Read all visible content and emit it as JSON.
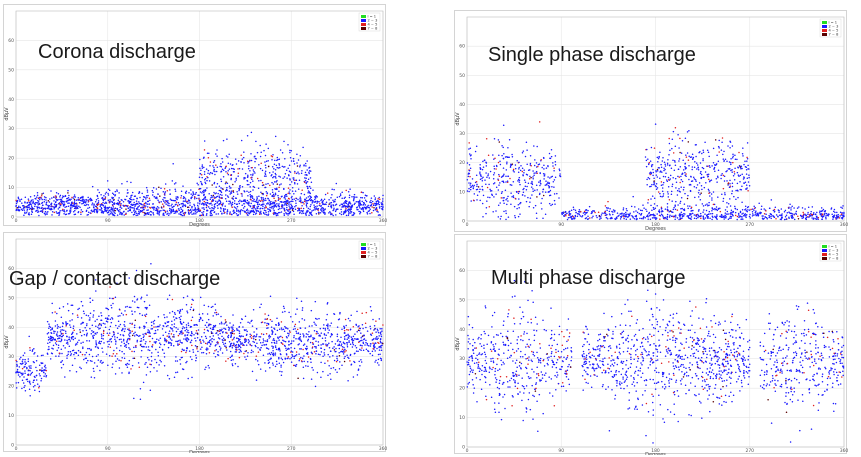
{
  "chart_data": [
    {
      "type": "scatter",
      "title": "Corona discharge",
      "xlabel": "Degrees",
      "ylabel": "dBµV",
      "xlim": [
        0,
        360
      ],
      "ylim": [
        0,
        70
      ],
      "xticks": [
        "0",
        "90",
        "180",
        "270",
        "360"
      ],
      "yticks": [
        "0",
        "10",
        "20",
        "30",
        "40",
        "50",
        "60"
      ],
      "legend": [
        "i = 1",
        "2 ~ 3",
        "4 ~ 5",
        "7 ~ 8"
      ],
      "legend_colors": [
        "#22dd22",
        "#1a1aff",
        "#e02020",
        "#5a0000"
      ],
      "clusters": [
        {
          "x": [
            0,
            360
          ],
          "center": 4,
          "spread": 3,
          "density": 0.6
        },
        {
          "x": [
            180,
            290
          ],
          "center": 15,
          "spread": 6,
          "density": 0.4
        }
      ]
    },
    {
      "type": "scatter",
      "title": "Single phase discharge",
      "xlabel": "Degrees",
      "ylabel": "dBµV",
      "xlim": [
        0,
        360
      ],
      "ylim": [
        0,
        70
      ],
      "xticks": [
        "0",
        "90",
        "180",
        "270",
        "360"
      ],
      "yticks": [
        "0",
        "10",
        "20",
        "30",
        "40",
        "50",
        "60"
      ],
      "legend": [
        "i = 1",
        "2 ~ 3",
        "4 ~ 5",
        "7 ~ 8"
      ],
      "legend_colors": [
        "#22dd22",
        "#1a1aff",
        "#e02020",
        "#5a0000"
      ],
      "clusters": [
        {
          "x": [
            0,
            90
          ],
          "center": 14,
          "spread": 7,
          "density": 0.5
        },
        {
          "x": [
            170,
            270
          ],
          "center": 16,
          "spread": 7,
          "density": 0.5
        },
        {
          "x": [
            90,
            360
          ],
          "center": 2,
          "spread": 2,
          "density": 0.3
        }
      ]
    },
    {
      "type": "scatter",
      "title": "Gap / contact discharge",
      "xlabel": "Degrees",
      "ylabel": "dBµV",
      "xlim": [
        0,
        360
      ],
      "ylim": [
        0,
        70
      ],
      "xticks": [
        "0",
        "90",
        "180",
        "270",
        "360"
      ],
      "yticks": [
        "0",
        "10",
        "20",
        "30",
        "40",
        "50",
        "60"
      ],
      "legend": [
        "i = 1",
        "2 ~ 3",
        "4 ~ 5",
        "7 ~ 8"
      ],
      "legend_colors": [
        "#22dd22",
        "#1a1aff",
        "#e02020",
        "#5a0000"
      ],
      "clusters": [
        {
          "x": [
            0,
            30
          ],
          "center": 25,
          "spread": 4,
          "density": 0.5
        },
        {
          "x": [
            30,
            210
          ],
          "center": 37,
          "spread": 7,
          "density": 0.6
        },
        {
          "x": [
            210,
            360
          ],
          "center": 35,
          "spread": 6,
          "density": 0.6
        }
      ]
    },
    {
      "type": "scatter",
      "title": "Multi phase discharge",
      "xlabel": "Degrees",
      "ylabel": "dBµV",
      "xlim": [
        0,
        360
      ],
      "ylim": [
        0,
        70
      ],
      "xticks": [
        "0",
        "90",
        "180",
        "270",
        "360"
      ],
      "yticks": [
        "0",
        "10",
        "20",
        "30",
        "40",
        "50",
        "60"
      ],
      "legend": [
        "i = 1",
        "2 ~ 3",
        "4 ~ 5",
        "7 ~ 8"
      ],
      "legend_colors": [
        "#22dd22",
        "#1a1aff",
        "#e02020",
        "#5a0000"
      ],
      "clusters": [
        {
          "x": [
            0,
            100
          ],
          "center": 30,
          "spread": 9,
          "density": 0.5
        },
        {
          "x": [
            110,
            270
          ],
          "center": 30,
          "spread": 9,
          "density": 0.6
        },
        {
          "x": [
            280,
            360
          ],
          "center": 28,
          "spread": 9,
          "density": 0.5
        }
      ]
    }
  ]
}
